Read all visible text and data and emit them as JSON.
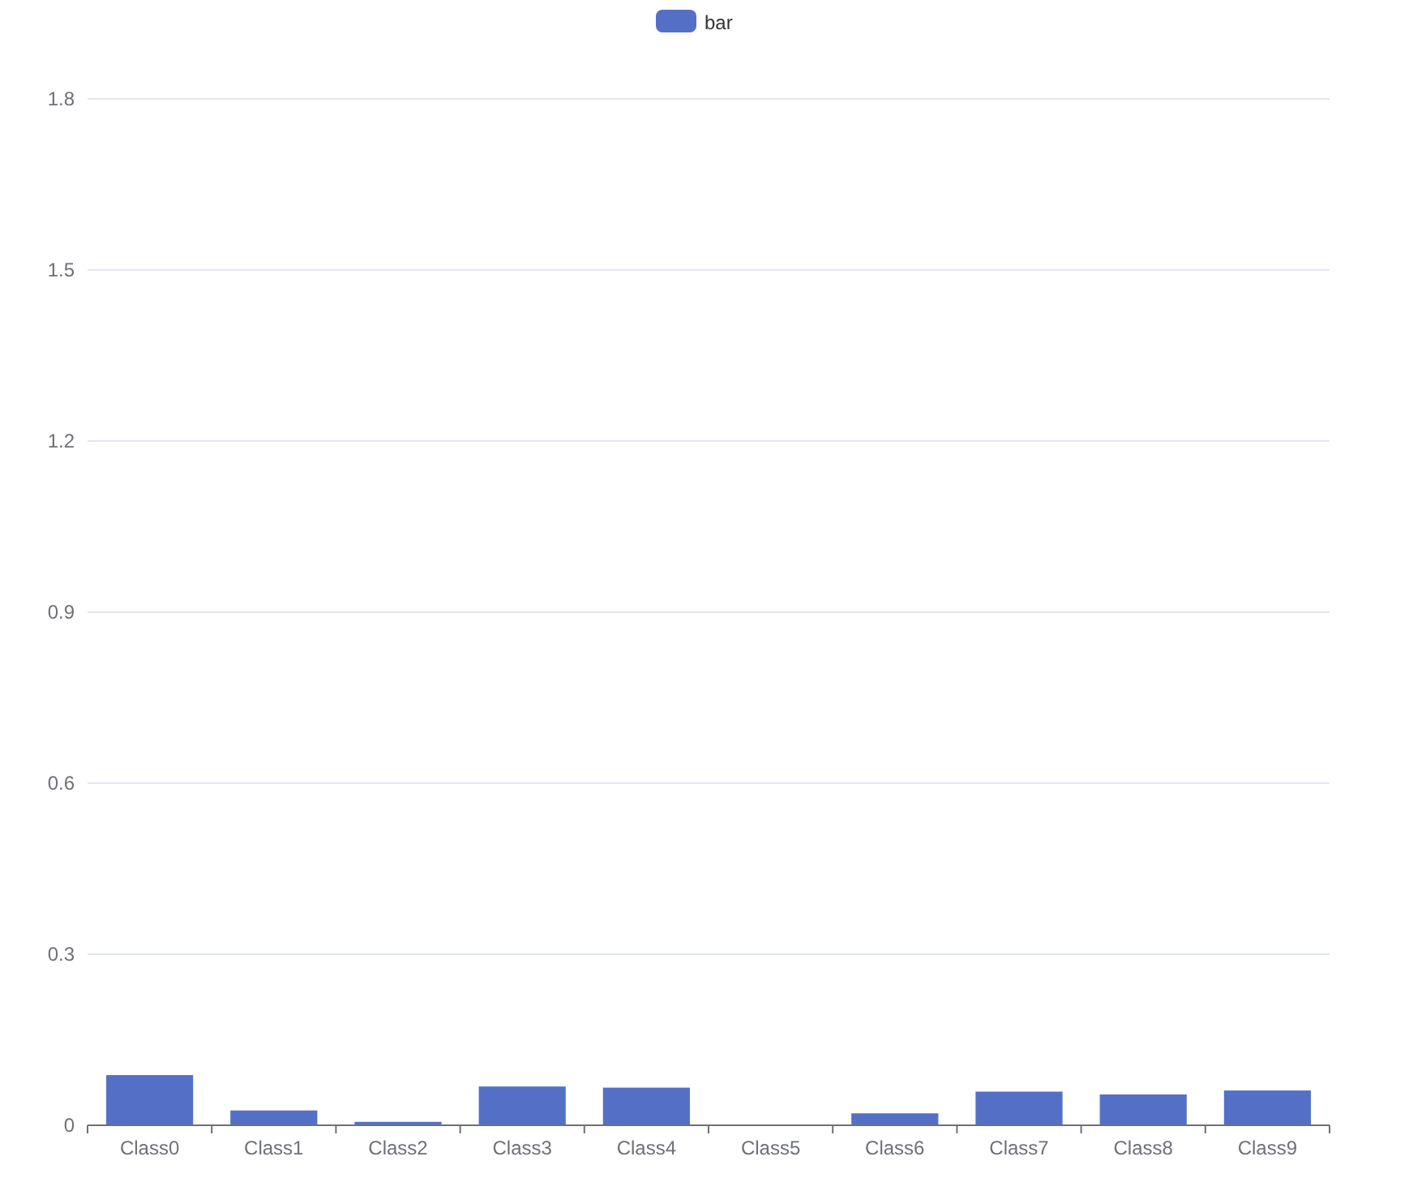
{
  "chart_data": {
    "type": "bar",
    "categories": [
      "Class0",
      "Class1",
      "Class2",
      "Class3",
      "Class4",
      "Class5",
      "Class6",
      "Class7",
      "Class8",
      "Class9"
    ],
    "series": [
      {
        "name": "bar",
        "color": "#5470c6",
        "values": [
          0.088,
          0.026,
          0.006,
          0.068,
          0.066,
          0,
          0.021,
          0.059,
          0.054,
          0.061
        ]
      }
    ],
    "ylim": [
      0,
      1.8
    ],
    "yticks": [
      0,
      0.3,
      0.6,
      0.9,
      1.2,
      1.5,
      1.8
    ],
    "grid": "y",
    "legend": "top"
  }
}
